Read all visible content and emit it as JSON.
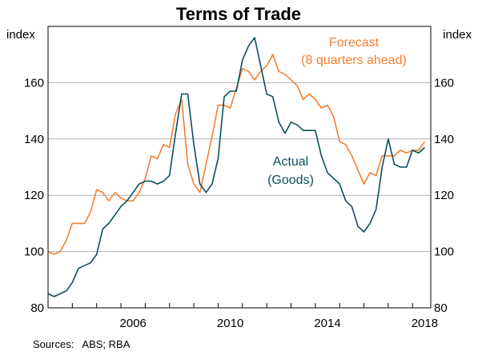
{
  "chart_data": {
    "type": "line",
    "title": "Terms of Trade",
    "left_unit": "index",
    "right_unit": "index",
    "ylim": [
      80,
      180
    ],
    "yticks": [
      80,
      100,
      120,
      140,
      160
    ],
    "xlim": [
      2003.0,
      2018.75
    ],
    "xticks": [
      2006,
      2010,
      2014,
      2018
    ],
    "grid": true,
    "source": "Sources:   ABS; RBA",
    "colors": {
      "forecast": "#F47F30",
      "actual": "#0E4E5C"
    },
    "annotations": {
      "forecast": [
        "Forecast",
        "(8 quarters ahead)"
      ],
      "actual": [
        "Actual",
        "(Goods)"
      ]
    },
    "series": [
      {
        "key": "forecast",
        "x": [
          2003.0,
          2003.25,
          2003.5,
          2003.75,
          2004.0,
          2004.25,
          2004.5,
          2004.75,
          2005.0,
          2005.25,
          2005.5,
          2005.75,
          2006.0,
          2006.25,
          2006.5,
          2006.75,
          2007.0,
          2007.25,
          2007.5,
          2007.75,
          2008.0,
          2008.25,
          2008.5,
          2008.75,
          2009.0,
          2009.25,
          2009.5,
          2009.75,
          2010.0,
          2010.25,
          2010.5,
          2010.75,
          2011.0,
          2011.25,
          2011.5,
          2011.75,
          2012.0,
          2012.25,
          2012.5,
          2012.75,
          2013.0,
          2013.25,
          2013.5,
          2013.75,
          2014.0,
          2014.25,
          2014.5,
          2014.75,
          2015.0,
          2015.25,
          2015.5,
          2015.75,
          2016.0,
          2016.25,
          2016.5,
          2016.75,
          2017.0,
          2017.25,
          2017.5,
          2017.75,
          2018.0,
          2018.25,
          2018.5
        ],
        "y": [
          100,
          99,
          100,
          104,
          110,
          110,
          110,
          114,
          122,
          121,
          118,
          121,
          119,
          118,
          118,
          121,
          126,
          134,
          133,
          138,
          137,
          149,
          154,
          131,
          124,
          121,
          131,
          141,
          152,
          152,
          151,
          158,
          165,
          164,
          161,
          164,
          166,
          170,
          164,
          163,
          161,
          159,
          154,
          156,
          154,
          151,
          152,
          148,
          139,
          138,
          134,
          129,
          124,
          128,
          127,
          134,
          134,
          134,
          136,
          135,
          136,
          136,
          139
        ]
      },
      {
        "key": "actual",
        "x": [
          2003.0,
          2003.25,
          2003.5,
          2003.75,
          2004.0,
          2004.25,
          2004.5,
          2004.75,
          2005.0,
          2005.25,
          2005.5,
          2005.75,
          2006.0,
          2006.25,
          2006.5,
          2006.75,
          2007.0,
          2007.25,
          2007.5,
          2007.75,
          2008.0,
          2008.25,
          2008.5,
          2008.75,
          2009.0,
          2009.25,
          2009.5,
          2009.75,
          2010.0,
          2010.25,
          2010.5,
          2010.75,
          2011.0,
          2011.25,
          2011.5,
          2011.75,
          2012.0,
          2012.25,
          2012.5,
          2012.75,
          2013.0,
          2013.25,
          2013.5,
          2013.75,
          2014.0,
          2014.25,
          2014.5,
          2014.75,
          2015.0,
          2015.25,
          2015.5,
          2015.75,
          2016.0,
          2016.25,
          2016.5,
          2016.75,
          2017.0,
          2017.25,
          2017.5,
          2017.75,
          2018.0,
          2018.25,
          2018.5
        ],
        "y": [
          85,
          84,
          85,
          86,
          89,
          94,
          95,
          96,
          99,
          108,
          110,
          113,
          116,
          118,
          121,
          124,
          125,
          125,
          124,
          125,
          127,
          142,
          156,
          156,
          138,
          124,
          121,
          124,
          133,
          155,
          157,
          157,
          168,
          173,
          176,
          166,
          156,
          155,
          146,
          142,
          146,
          145,
          143,
          143,
          143,
          134,
          128,
          126,
          124,
          118,
          116,
          109,
          107,
          110,
          115,
          130,
          140,
          131,
          130,
          130,
          136,
          135,
          137
        ]
      }
    ]
  }
}
